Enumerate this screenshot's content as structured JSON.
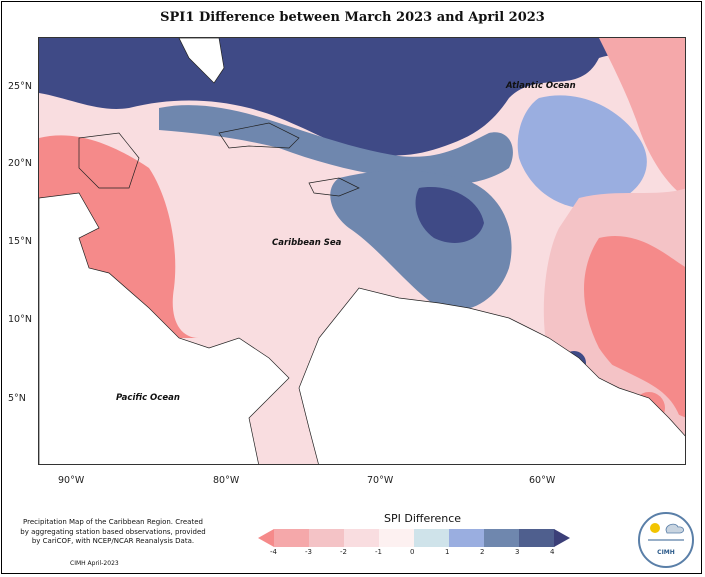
{
  "title": "SPI1 Difference between March 2023 and April 2023",
  "axes": {
    "lat_labels": [
      "25°N",
      "20°N",
      "15°N",
      "10°N",
      "5°N"
    ],
    "lon_labels": [
      "90°W",
      "80°W",
      "70°W",
      "60°W"
    ]
  },
  "labels": {
    "atlantic": "Atlantic Ocean",
    "caribbean": "Caribbean Sea",
    "pacific": "Pacific Ocean"
  },
  "legend": {
    "title": "SPI Difference",
    "ticks": [
      "-4",
      "-3",
      "-2",
      "-1",
      "0",
      "1",
      "2",
      "3",
      "4"
    ],
    "colors": [
      "#f58a8a",
      "#f5a8aa",
      "#f4c3c6",
      "#f9dde0",
      "#fdf1f1",
      "#cfe3ea",
      "#9aaee0",
      "#6f87ae",
      "#4f5f8e",
      "#3b3f78"
    ]
  },
  "credits": {
    "text": "Precipitation Map of the Caribbean Region. Created by aggregating station based observations, provided by CariCOF, with NCEP/NCAR Reanalysis Data.",
    "date": "CIMH April-2023"
  },
  "logo": {
    "text": "CIMH"
  }
}
